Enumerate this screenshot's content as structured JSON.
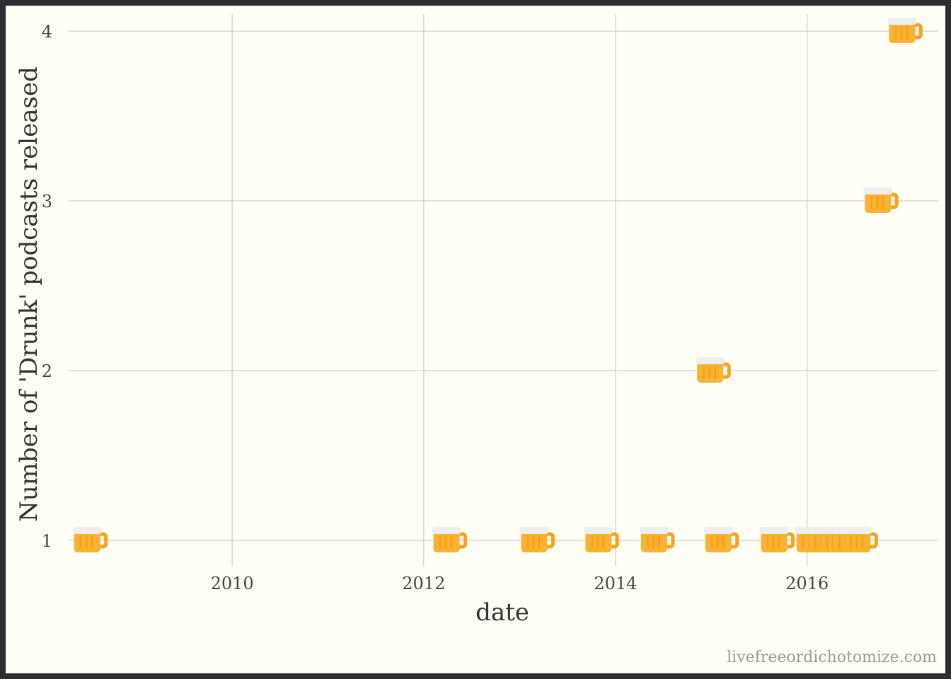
{
  "chart_data": {
    "type": "scatter",
    "marker": "beer-mug-icon",
    "xlabel": "date",
    "ylabel": "Number of 'Drunk' podcasts released",
    "x_tick_labels": [
      "2010",
      "2012",
      "2014",
      "2016"
    ],
    "y_tick_labels": [
      "1",
      "2",
      "3",
      "4"
    ],
    "x_ticks": [
      "2010-01-01",
      "2012-01-01",
      "2014-01-01",
      "2016-01-01"
    ],
    "y_ticks": [
      1,
      2,
      3,
      4
    ],
    "xlim": [
      "2008-04-15",
      "2017-05-15"
    ],
    "ylim": [
      0.85,
      4.1
    ],
    "grid": true,
    "points": [
      {
        "x": "2008-07-01",
        "y": 1
      },
      {
        "x": "2012-04-01",
        "y": 1
      },
      {
        "x": "2013-03-01",
        "y": 1
      },
      {
        "x": "2013-11-01",
        "y": 1
      },
      {
        "x": "2014-06-01",
        "y": 1
      },
      {
        "x": "2015-01-01",
        "y": 2
      },
      {
        "x": "2015-02-01",
        "y": 1
      },
      {
        "x": "2015-09-01",
        "y": 1
      },
      {
        "x": "2016-01-15",
        "y": 1
      },
      {
        "x": "2016-03-01",
        "y": 1
      },
      {
        "x": "2016-04-15",
        "y": 1
      },
      {
        "x": "2016-06-01",
        "y": 1
      },
      {
        "x": "2016-07-15",
        "y": 1
      },
      {
        "x": "2016-10-01",
        "y": 3
      },
      {
        "x": "2017-01-01",
        "y": 4
      }
    ]
  },
  "caption": "livefreeordichotomize.com",
  "colors": {
    "background": "#fffff6",
    "frame": "#2b2f33",
    "grid": "#cfcfcf",
    "beer": "#f9b233",
    "mug": "#f7a21b",
    "foam": "#eeeeee"
  }
}
